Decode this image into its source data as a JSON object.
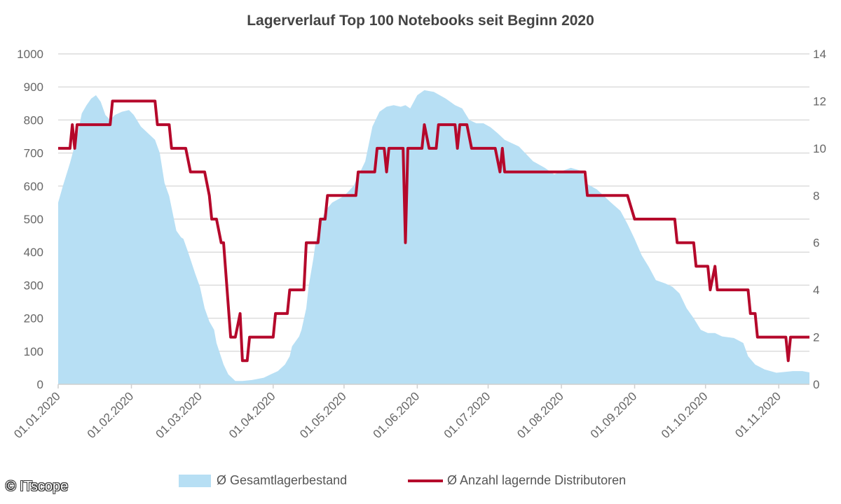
{
  "chart_data": {
    "type": "area+line",
    "title": "Lagerverlauf Top 100 Notebooks seit Beginn 2020",
    "xlim": [
      "01.01.2020",
      "14.11.2020"
    ],
    "x_tick_labels": [
      "01.01.2020",
      "01.02.2020",
      "01.03.2020",
      "01.04.2020",
      "01.05.2020",
      "01.06.2020",
      "01.07.2020",
      "01.08.2020",
      "01.09.2020",
      "01.10.2020",
      "01.11.2020"
    ],
    "y_left": {
      "min": 0,
      "max": 1000,
      "ticks": [
        0,
        100,
        200,
        300,
        400,
        500,
        600,
        700,
        800,
        900,
        1000
      ]
    },
    "y_right": {
      "min": 0,
      "max": 14,
      "ticks": [
        0,
        2,
        4,
        6,
        8,
        10,
        12,
        14
      ]
    },
    "grid": true,
    "legend_position": "bottom",
    "series": [
      {
        "name": "Ø Gesamtlagerbestand",
        "type": "area",
        "axis": "left",
        "color": "#b7dff4",
        "points": [
          [
            "01.01.2020",
            550
          ],
          [
            "03.01.2020",
            600
          ],
          [
            "06.01.2020",
            670
          ],
          [
            "09.01.2020",
            750
          ],
          [
            "11.01.2020",
            820
          ],
          [
            "13.01.2020",
            845
          ],
          [
            "15.01.2020",
            865
          ],
          [
            "17.01.2020",
            875
          ],
          [
            "19.01.2020",
            855
          ],
          [
            "21.01.2020",
            815
          ],
          [
            "23.01.2020",
            800
          ],
          [
            "25.01.2020",
            815
          ],
          [
            "28.01.2020",
            825
          ],
          [
            "31.01.2020",
            830
          ],
          [
            "02.02.2020",
            815
          ],
          [
            "05.02.2020",
            780
          ],
          [
            "08.02.2020",
            760
          ],
          [
            "11.02.2020",
            740
          ],
          [
            "13.02.2020",
            700
          ],
          [
            "15.02.2020",
            610
          ],
          [
            "17.02.2020",
            570
          ],
          [
            "20.02.2020",
            465
          ],
          [
            "22.02.2020",
            445
          ],
          [
            "23.02.2020",
            440
          ],
          [
            "25.02.2020",
            400
          ],
          [
            "28.02.2020",
            335
          ],
          [
            "01.03.2020",
            295
          ],
          [
            "03.03.2020",
            230
          ],
          [
            "05.03.2020",
            190
          ],
          [
            "07.03.2020",
            165
          ],
          [
            "08.03.2020",
            125
          ],
          [
            "11.03.2020",
            60
          ],
          [
            "13.03.2020",
            30
          ],
          [
            "16.03.2020",
            10
          ],
          [
            "19.03.2020",
            10
          ],
          [
            "23.03.2020",
            13
          ],
          [
            "28.03.2020",
            20
          ],
          [
            "31.03.2020",
            30
          ],
          [
            "03.04.2020",
            40
          ],
          [
            "06.04.2020",
            60
          ],
          [
            "08.04.2020",
            85
          ],
          [
            "09.04.2020",
            115
          ],
          [
            "12.04.2020",
            145
          ],
          [
            "13.04.2020",
            165
          ],
          [
            "15.04.2020",
            230
          ],
          [
            "16.04.2020",
            295
          ],
          [
            "18.04.2020",
            380
          ],
          [
            "19.04.2020",
            430
          ],
          [
            "21.04.2020",
            485
          ],
          [
            "23.04.2020",
            525
          ],
          [
            "26.04.2020",
            550
          ],
          [
            "01.05.2020",
            570
          ],
          [
            "05.05.2020",
            600
          ],
          [
            "10.05.2020",
            675
          ],
          [
            "13.05.2020",
            780
          ],
          [
            "16.05.2020",
            825
          ],
          [
            "19.05.2020",
            840
          ],
          [
            "22.05.2020",
            845
          ],
          [
            "25.05.2020",
            840
          ],
          [
            "27.05.2020",
            845
          ],
          [
            "29.05.2020",
            835
          ],
          [
            "01.06.2020",
            875
          ],
          [
            "04.06.2020",
            890
          ],
          [
            "08.06.2020",
            885
          ],
          [
            "13.06.2020",
            865
          ],
          [
            "17.06.2020",
            845
          ],
          [
            "20.06.2020",
            835
          ],
          [
            "23.06.2020",
            800
          ],
          [
            "26.06.2020",
            790
          ],
          [
            "29.06.2020",
            790
          ],
          [
            "02.07.2020",
            778
          ],
          [
            "05.07.2020",
            760
          ],
          [
            "08.07.2020",
            740
          ],
          [
            "14.07.2020",
            720
          ],
          [
            "20.07.2020",
            675
          ],
          [
            "25.07.2020",
            655
          ],
          [
            "29.07.2020",
            635
          ],
          [
            "01.08.2020",
            645
          ],
          [
            "05.08.2020",
            655
          ],
          [
            "10.08.2020",
            645
          ],
          [
            "11.08.2020",
            610
          ],
          [
            "16.08.2020",
            590
          ],
          [
            "22.08.2020",
            550
          ],
          [
            "26.08.2020",
            525
          ],
          [
            "29.08.2020",
            485
          ],
          [
            "01.09.2020",
            440
          ],
          [
            "04.09.2020",
            390
          ],
          [
            "07.09.2020",
            355
          ],
          [
            "10.09.2020",
            315
          ],
          [
            "14.09.2020",
            305
          ],
          [
            "17.09.2020",
            295
          ],
          [
            "20.09.2020",
            275
          ],
          [
            "23.09.2020",
            230
          ],
          [
            "26.09.2020",
            200
          ],
          [
            "29.09.2020",
            165
          ],
          [
            "02.10.2020",
            155
          ],
          [
            "05.10.2020",
            155
          ],
          [
            "08.10.2020",
            145
          ],
          [
            "13.10.2020",
            140
          ],
          [
            "17.10.2020",
            125
          ],
          [
            "19.10.2020",
            85
          ],
          [
            "22.10.2020",
            60
          ],
          [
            "26.10.2020",
            45
          ],
          [
            "31.10.2020",
            35
          ],
          [
            "03.11.2020",
            37
          ],
          [
            "07.11.2020",
            40
          ],
          [
            "11.11.2020",
            40
          ],
          [
            "14.11.2020",
            36
          ]
        ]
      },
      {
        "name": "Ø Anzahl lagernde Distributoren",
        "type": "line",
        "axis": "right",
        "color": "#b5082b",
        "points": [
          [
            "01.01.2020",
            10
          ],
          [
            "06.01.2020",
            10
          ],
          [
            "07.01.2020",
            11
          ],
          [
            "08.01.2020",
            10
          ],
          [
            "09.01.2020",
            11
          ],
          [
            "23.01.2020",
            11
          ],
          [
            "24.01.2020",
            12
          ],
          [
            "11.02.2020",
            12
          ],
          [
            "12.02.2020",
            11
          ],
          [
            "17.02.2020",
            11
          ],
          [
            "18.02.2020",
            10
          ],
          [
            "24.02.2020",
            10
          ],
          [
            "26.02.2020",
            9
          ],
          [
            "03.03.2020",
            9
          ],
          [
            "05.03.2020",
            8
          ],
          [
            "06.03.2020",
            7
          ],
          [
            "08.03.2020",
            7
          ],
          [
            "10.03.2020",
            6
          ],
          [
            "11.03.2020",
            6
          ],
          [
            "14.03.2020",
            2
          ],
          [
            "16.03.2020",
            2
          ],
          [
            "18.03.2020",
            3
          ],
          [
            "19.03.2020",
            1
          ],
          [
            "21.03.2020",
            1
          ],
          [
            "22.03.2020",
            2
          ],
          [
            "01.04.2020",
            2
          ],
          [
            "02.04.2020",
            3
          ],
          [
            "07.04.2020",
            3
          ],
          [
            "08.04.2020",
            4
          ],
          [
            "14.04.2020",
            4
          ],
          [
            "15.04.2020",
            6
          ],
          [
            "20.04.2020",
            6
          ],
          [
            "21.04.2020",
            7
          ],
          [
            "23.04.2020",
            7
          ],
          [
            "24.04.2020",
            8
          ],
          [
            "06.05.2020",
            8
          ],
          [
            "07.05.2020",
            9
          ],
          [
            "14.05.2020",
            9
          ],
          [
            "15.05.2020",
            10
          ],
          [
            "18.05.2020",
            10
          ],
          [
            "19.05.2020",
            9
          ],
          [
            "20.05.2020",
            10
          ],
          [
            "26.05.2020",
            10
          ],
          [
            "27.05.2020",
            6
          ],
          [
            "28.05.2020",
            10
          ],
          [
            "03.06.2020",
            10
          ],
          [
            "04.06.2020",
            11
          ],
          [
            "06.06.2020",
            10
          ],
          [
            "09.06.2020",
            10
          ],
          [
            "10.06.2020",
            11
          ],
          [
            "17.06.2020",
            11
          ],
          [
            "18.06.2020",
            10
          ],
          [
            "19.06.2020",
            11
          ],
          [
            "22.06.2020",
            11
          ],
          [
            "24.06.2020",
            10
          ],
          [
            "04.07.2020",
            10
          ],
          [
            "06.07.2020",
            9
          ],
          [
            "07.07.2020",
            10
          ],
          [
            "08.07.2020",
            9
          ],
          [
            "11.08.2020",
            9
          ],
          [
            "12.08.2020",
            8
          ],
          [
            "29.08.2020",
            8
          ],
          [
            "01.09.2020",
            7
          ],
          [
            "18.09.2020",
            7
          ],
          [
            "19.09.2020",
            6
          ],
          [
            "26.09.2020",
            6
          ],
          [
            "27.09.2020",
            5
          ],
          [
            "02.10.2020",
            5
          ],
          [
            "03.10.2020",
            4
          ],
          [
            "05.10.2020",
            5
          ],
          [
            "06.10.2020",
            4
          ],
          [
            "19.10.2020",
            4
          ],
          [
            "20.10.2020",
            3
          ],
          [
            "22.10.2020",
            3
          ],
          [
            "23.10.2020",
            2
          ],
          [
            "04.11.2020",
            2
          ],
          [
            "05.11.2020",
            1
          ],
          [
            "06.11.2020",
            2
          ],
          [
            "14.11.2020",
            2
          ]
        ]
      }
    ]
  },
  "watermark": "© ITscope"
}
